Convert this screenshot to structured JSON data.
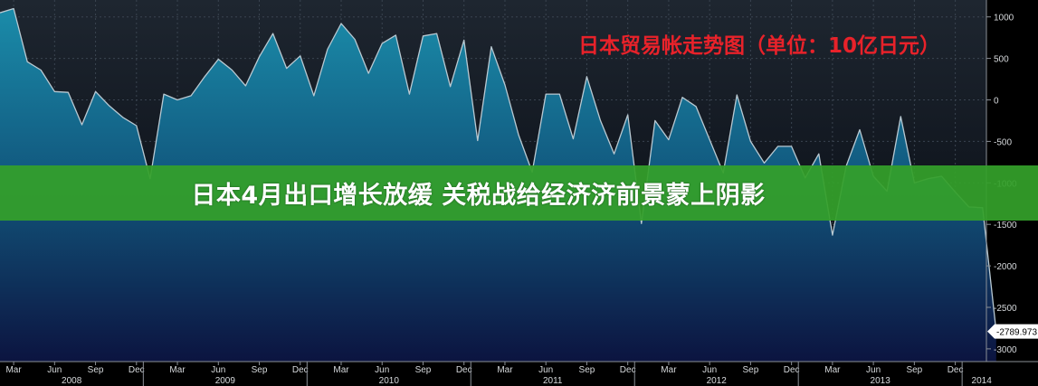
{
  "banner": {
    "headline": "日本4月出口增长放缓 关税战给经济济前景蒙上阴影"
  },
  "chart_data": {
    "type": "area",
    "title": "日本贸易帐走势图（单位：10亿日元）",
    "xlabel": "",
    "ylabel": "",
    "ylim": [
      -3150,
      1080
    ],
    "yticks": [
      1000,
      500,
      0,
      -500,
      -1000,
      -1500,
      -2000,
      -2500,
      -3000
    ],
    "grid": true,
    "month_ticks": [
      "Mar",
      "Jun",
      "Sep",
      "Dec",
      "Mar",
      "Jun",
      "Sep",
      "Dec",
      "Mar",
      "Jun",
      "Sep",
      "Dec",
      "Mar",
      "Jun",
      "Sep",
      "Dec",
      "Mar",
      "Jun",
      "Sep",
      "Dec",
      "Mar",
      "Jun",
      "Sep",
      "Dec"
    ],
    "year_labels": [
      "2008",
      "2009",
      "2010",
      "2011",
      "2012",
      "2013",
      "2014"
    ],
    "last_value_label": "-2789.973",
    "colors": {
      "line": "#b9c9d2",
      "fill_top": "#1a8aa8",
      "fill_bottom": "#0c1440",
      "title": "#e8222a",
      "banner": "#34a02a"
    },
    "series": [
      {
        "values": [
          1050,
          1100,
          460,
          360,
          100,
          90,
          -300,
          100,
          -70,
          -210,
          -310,
          -950,
          70,
          0,
          50,
          280,
          490,
          360,
          170,
          520,
          800,
          380,
          530,
          50,
          610,
          920,
          730,
          320,
          680,
          780,
          70,
          770,
          800,
          160,
          720,
          -490,
          640,
          180,
          -420,
          -870,
          70,
          70,
          -470,
          280,
          -250,
          -650,
          -180,
          -1490,
          -250,
          -480,
          30,
          -80,
          -480,
          -880,
          60,
          -500,
          -760,
          -560,
          -560,
          -940,
          -650,
          -1630,
          -800,
          -360,
          -920,
          -1100,
          -200,
          -1000,
          -950,
          -920,
          -1110,
          -1290,
          -1300,
          -2790
        ]
      }
    ]
  }
}
